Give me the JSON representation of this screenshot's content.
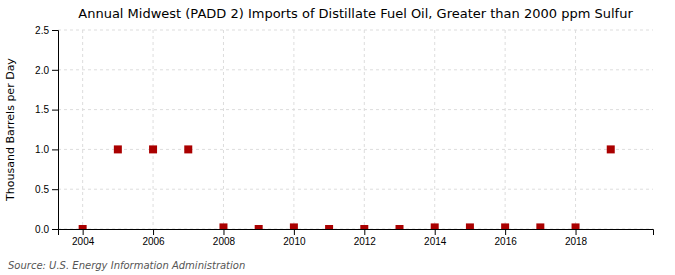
{
  "chart_data": {
    "type": "scatter",
    "title": "Annual Midwest (PADD 2) Imports of Distillate Fuel Oil, Greater than 2000 ppm Sulfur",
    "ylabel": "Thousand Barrels per Day",
    "source": "Source: U.S. Energy Information Administration",
    "x": [
      2004,
      2005,
      2006,
      2007,
      2008,
      2009,
      2010,
      2011,
      2012,
      2013,
      2014,
      2015,
      2016,
      2017,
      2018,
      2019
    ],
    "values": [
      0.0,
      1.0,
      1.0,
      1.0,
      0.02,
      0.0,
      0.02,
      0.0,
      0.0,
      0.0,
      0.02,
      0.02,
      0.02,
      0.02,
      0.02,
      1.0
    ],
    "color": "#aa0000",
    "marker": "square",
    "xlim": [
      2003.3,
      2020.2
    ],
    "xticks": [
      2004,
      2006,
      2008,
      2010,
      2012,
      2014,
      2016,
      2018
    ],
    "ylim": [
      0.0,
      2.5
    ],
    "yticks": [
      {
        "value": 0.0,
        "label": "0.0"
      },
      0.5,
      {
        "value": 1.0,
        "label": "1.0"
      },
      1.5,
      {
        "value": 2.0,
        "label": "2.0"
      },
      2.5
    ],
    "grid": true
  }
}
